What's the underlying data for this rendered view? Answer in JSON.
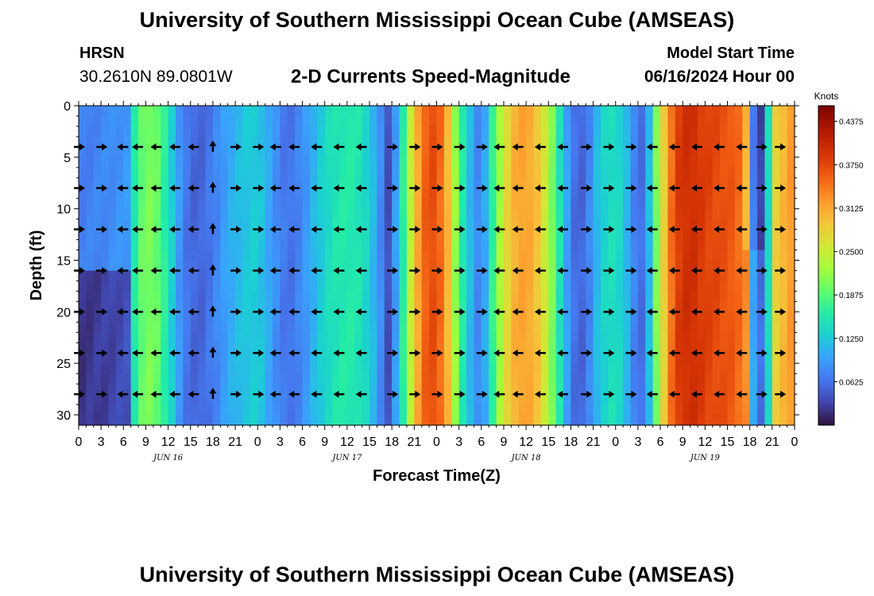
{
  "header": {
    "title": "University of Southern Mississippi Ocean Cube (AMSEAS)",
    "station": "HRSN",
    "coordinates": "30.2610N  89.0801W",
    "subtitle": "2-D Currents Speed-Magnitude",
    "model_start_label": "Model Start Time",
    "model_start_value": "06/16/2024 Hour 00"
  },
  "footer": {
    "title": "University of Southern Mississippi Ocean Cube (AMSEAS)"
  },
  "chart_data": {
    "type": "heatmap",
    "title": "2-D Currents Speed-Magnitude",
    "xlabel": "Forecast Time(Z)",
    "ylabel": "Depth (ft)",
    "x_range_hours": [
      0,
      96
    ],
    "y_range_ft": [
      0,
      31
    ],
    "y_ticks": [
      0,
      5,
      10,
      15,
      20,
      25,
      30
    ],
    "x_tick_hours": [
      0,
      3,
      6,
      9,
      12,
      15,
      18,
      21,
      24,
      27,
      30,
      33,
      36,
      39,
      42,
      45,
      48,
      51,
      54,
      57,
      60,
      63,
      66,
      69,
      72,
      75,
      78,
      81,
      84,
      87,
      90,
      93,
      96
    ],
    "x_tick_labels": [
      "0",
      "3",
      "6",
      "9",
      "12",
      "15",
      "18",
      "21",
      "0",
      "3",
      "6",
      "9",
      "12",
      "15",
      "18",
      "21",
      "0",
      "3",
      "6",
      "9",
      "12",
      "15",
      "18",
      "21",
      "0",
      "3",
      "6",
      "9",
      "12",
      "15",
      "18",
      "21",
      "0"
    ],
    "date_labels": [
      {
        "hour": 12,
        "label": "JUN 16"
      },
      {
        "hour": 36,
        "label": "JUN 17"
      },
      {
        "hour": 60,
        "label": "JUN 18"
      },
      {
        "hour": 84,
        "label": "JUN 19"
      }
    ],
    "colorbar": {
      "unit": "Knots",
      "min": 0,
      "max": 0.46,
      "ticks": [
        "0.4375",
        "0.3750",
        "0.3125",
        "0.2500",
        "0.1875",
        "0.1250",
        "0.0625"
      ]
    },
    "speed_profile_by_hour": {
      "hours": [
        0,
        4,
        6.5,
        8,
        10,
        12,
        14,
        16,
        18,
        20,
        22,
        24,
        26,
        28,
        30,
        32,
        34,
        36,
        38,
        40,
        41.5,
        43,
        45,
        47,
        49,
        51,
        53,
        54,
        56,
        58,
        60,
        62,
        64,
        66,
        67,
        68,
        70,
        72,
        74,
        75,
        76,
        78,
        80,
        82,
        84,
        86,
        88,
        89.5,
        90.5,
        91.5,
        92.5,
        93.5,
        96
      ],
      "speeds": [
        0.07,
        0.08,
        0.09,
        0.19,
        0.21,
        0.15,
        0.07,
        0.05,
        0.07,
        0.1,
        0.12,
        0.13,
        0.09,
        0.06,
        0.08,
        0.12,
        0.15,
        0.16,
        0.15,
        0.1,
        0.04,
        0.12,
        0.29,
        0.38,
        0.34,
        0.18,
        0.09,
        0.07,
        0.2,
        0.3,
        0.32,
        0.28,
        0.18,
        0.07,
        0.05,
        0.06,
        0.13,
        0.15,
        0.1,
        0.05,
        0.07,
        0.25,
        0.38,
        0.4,
        0.38,
        0.37,
        0.36,
        0.33,
        0.1,
        0.06,
        0.14,
        0.28,
        0.33
      ]
    },
    "vector_depths_ft": [
      4,
      8,
      12,
      16,
      20,
      24,
      28
    ],
    "vector_hours": [
      0,
      3,
      6,
      8,
      10.5,
      13,
      15.5,
      18,
      21,
      24,
      26.5,
      29,
      32,
      35,
      38,
      42,
      45,
      48,
      51,
      54,
      56.5,
      59,
      62,
      65,
      68,
      71,
      74,
      77,
      80,
      83,
      86,
      89,
      91.5,
      94
    ],
    "vector_directions": [
      "E",
      "E",
      "W",
      "W",
      "W",
      "W",
      "W",
      "N",
      "E",
      "E",
      "W",
      "W",
      "W",
      "W",
      "W",
      "E",
      "E",
      "E",
      "E",
      "E",
      "W",
      "W",
      "W",
      "W",
      "E",
      "E",
      "E",
      "W",
      "W",
      "W",
      "W",
      "W",
      "E",
      "E"
    ]
  }
}
